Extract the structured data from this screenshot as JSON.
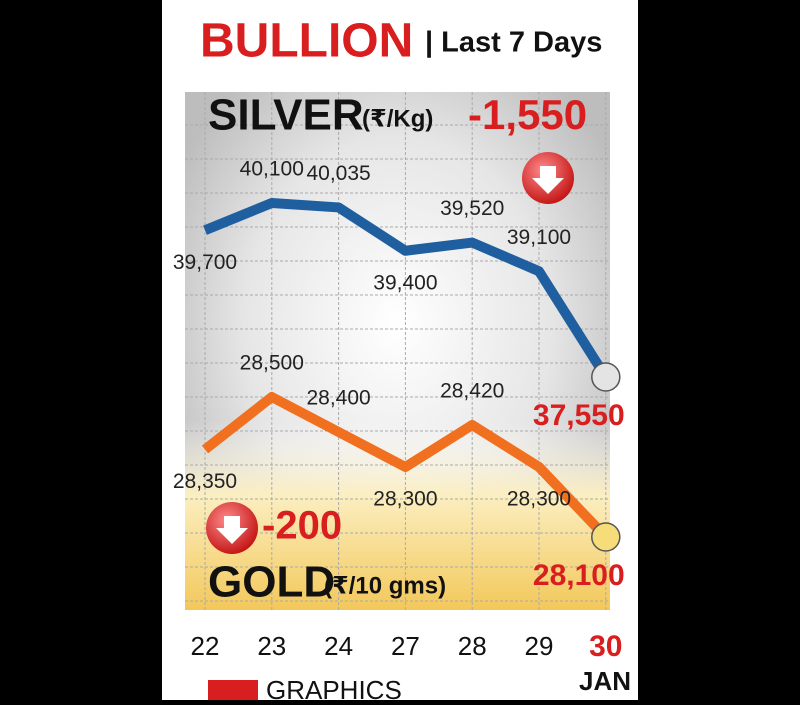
{
  "chart_data": {
    "type": "line",
    "title": "BULLION",
    "subtitle": "| Last 7 Days",
    "categories": [
      "22",
      "23",
      "24",
      "27",
      "28",
      "29",
      "30"
    ],
    "x_label": "JAN",
    "series": [
      {
        "name": "SILVER",
        "unit": "(₹/Kg)",
        "color": "#1f5fa0",
        "change": "-1,550",
        "values": [
          39700,
          40100,
          40035,
          39400,
          39520,
          39100,
          37550
        ],
        "value_labels": [
          "39,700",
          "40,100",
          "40,035",
          "39,400",
          "39,520",
          "39,100",
          "37,550"
        ]
      },
      {
        "name": "GOLD",
        "unit": "(₹/10 gms)",
        "color": "#f07020",
        "change": "-200",
        "values": [
          28350,
          28500,
          28400,
          28300,
          28420,
          28300,
          28100
        ],
        "value_labels": [
          "28,350",
          "28,500",
          "28,400",
          "28,300",
          "28,420",
          "28,300",
          "28,100"
        ]
      }
    ],
    "source": "GRAPHICS"
  }
}
